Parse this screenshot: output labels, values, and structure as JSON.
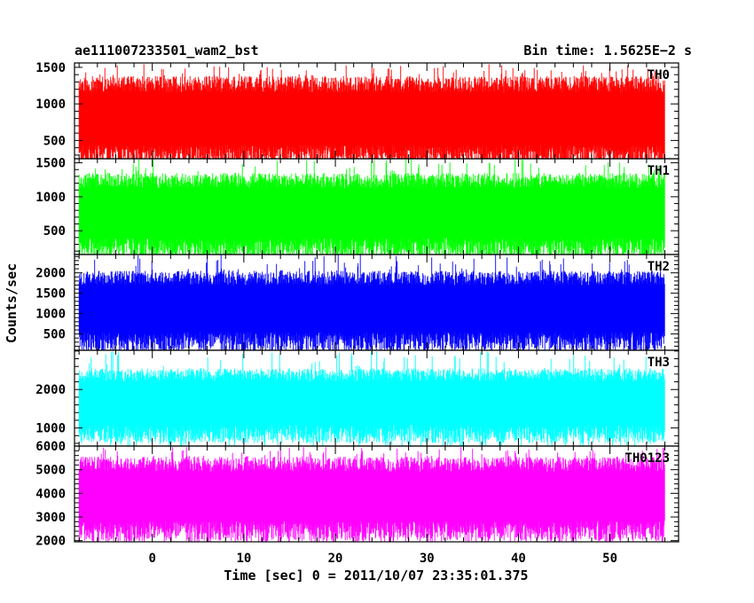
{
  "chart_data": {
    "type": "line",
    "title_left": "ae111007233501_wam2_bst",
    "title_right": "Bin time: 1.5625E−2 s",
    "xlabel": "Time [sec] 0 = 2011/10/07 23:35:01.375",
    "ylabel": "Counts/sec",
    "xlim": [
      -8.5,
      57.5
    ],
    "xticks": [
      0,
      10,
      20,
      30,
      40,
      50
    ],
    "data_xrange": [
      -8,
      56
    ],
    "panels": [
      {
        "name": "TH0",
        "color": "#ff0000",
        "ylim": [
          250,
          1560
        ],
        "yticks": [
          500,
          1000,
          1500
        ],
        "ytick_labels": [
          "500",
          "1000",
          "1500"
        ],
        "noise_low": 120,
        "noise_high": 1380,
        "spike_max": 1550
      },
      {
        "name": "TH1",
        "color": "#00ff00",
        "ylim": [
          150,
          1560
        ],
        "yticks": [
          500,
          1000,
          1500
        ],
        "ytick_labels": [
          "500",
          "1000",
          "1500"
        ],
        "noise_low": 80,
        "noise_high": 1350,
        "spike_max": 1560
      },
      {
        "name": "TH2",
        "color": "#0000ff",
        "ylim": [
          100,
          2450
        ],
        "yticks": [
          500,
          1000,
          1500,
          2000
        ],
        "ytick_labels": [
          "500",
          "1000",
          "1500",
          "2000"
        ],
        "noise_low": 50,
        "noise_high": 2050,
        "spike_max": 2450
      },
      {
        "name": "TH3",
        "color": "#00ffff",
        "ylim": [
          530,
          3020
        ],
        "yticks": [
          1000,
          2000
        ],
        "ytick_labels": [
          "1000",
          "2000"
        ],
        "noise_low": 600,
        "noise_high": 2550,
        "spike_max": 3000
      },
      {
        "name": "TH0123",
        "color": "#ff00ff",
        "ylim": [
          1950,
          6000
        ],
        "yticks": [
          2000,
          3000,
          4000,
          5000,
          6000
        ],
        "ytick_labels": [
          "2000",
          "3000",
          "4000",
          "5000",
          "6000"
        ],
        "noise_low": 1950,
        "noise_high": 5550,
        "spike_max": 5950
      }
    ]
  }
}
